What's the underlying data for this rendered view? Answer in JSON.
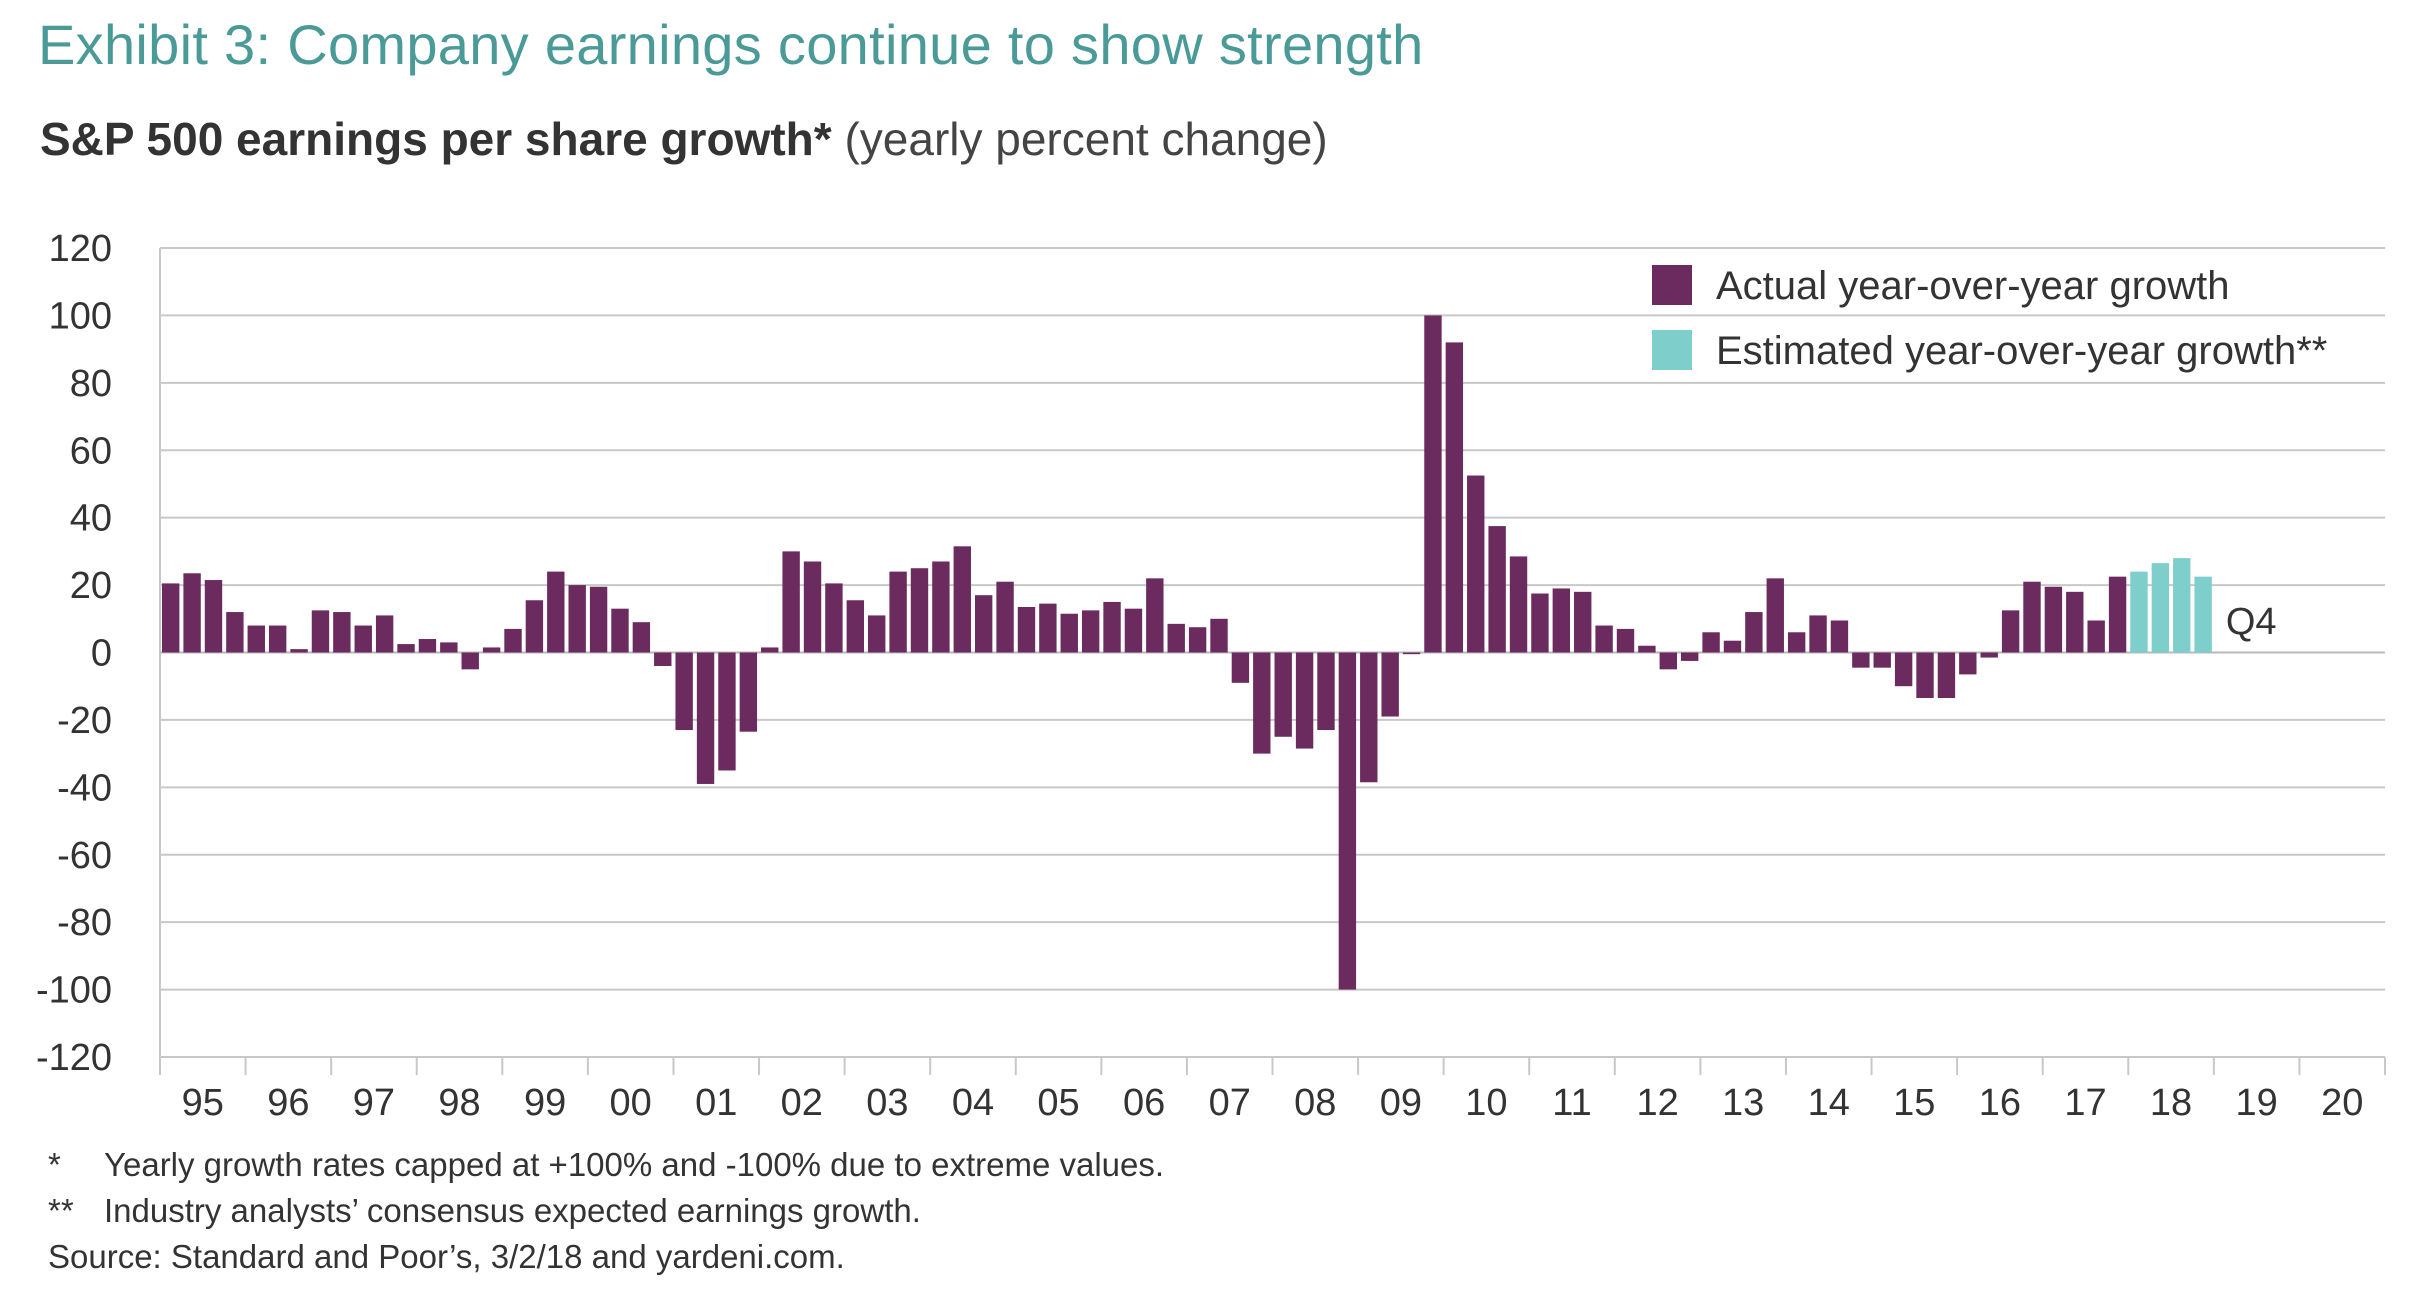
{
  "title": "Exhibit 3: Company earnings continue to show strength",
  "subtitle": {
    "main": "S&P 500 earnings per share growth*",
    "note": "(yearly percent change)"
  },
  "colors": {
    "actual": "#6c2b5f",
    "estimated": "#7ecfcb",
    "grid": "#c8c8c8",
    "title": "#4a9a98"
  },
  "chart_data": {
    "type": "bar",
    "title": "S&P 500 earnings per share growth* (yearly percent change)",
    "xlabel": "",
    "ylabel": "",
    "ylim": [
      -120,
      120
    ],
    "yticks": [
      120,
      100,
      80,
      60,
      40,
      20,
      0,
      -20,
      -40,
      -60,
      -80,
      -100,
      -120
    ],
    "xticks": [
      "95",
      "96",
      "97",
      "98",
      "99",
      "00",
      "01",
      "02",
      "03",
      "04",
      "05",
      "06",
      "07",
      "08",
      "09",
      "10",
      "11",
      "12",
      "13",
      "14",
      "15",
      "16",
      "17",
      "18",
      "19",
      "20"
    ],
    "frequency": "quarterly",
    "start_year": "95",
    "legend": {
      "position": "top-right",
      "entries": [
        "Actual year-over-year growth",
        "Estimated year-over-year growth**"
      ]
    },
    "annotation": "Q4",
    "series": [
      {
        "name": "Actual year-over-year growth",
        "values": [
          20.5,
          23.5,
          21.5,
          12,
          8,
          8,
          1,
          12.5,
          12,
          8,
          11,
          2.5,
          4,
          3,
          -5,
          1.5,
          7,
          15.5,
          24,
          20,
          19.5,
          13,
          9,
          -4,
          -23,
          -39,
          -35,
          -23.5,
          1.5,
          30,
          27,
          20.5,
          15.5,
          11,
          24,
          25,
          27,
          31.5,
          17,
          21,
          13.5,
          14.5,
          11.5,
          12.5,
          15,
          13,
          22,
          8.5,
          7.5,
          10,
          -9,
          -30,
          -25,
          -28.5,
          -23,
          -100,
          -38.5,
          -19,
          -0.5,
          100,
          92,
          52.5,
          37.5,
          28.5,
          17.5,
          19,
          18,
          8,
          7,
          2,
          -5,
          -2.5,
          6,
          3.5,
          12,
          22,
          6,
          11,
          9.5,
          -4.5,
          -4.5,
          -10,
          -13.5,
          -13.5,
          -6.5,
          -1.5,
          12.5,
          21,
          19.5,
          18,
          9.5,
          22.5
        ]
      },
      {
        "name": "Estimated year-over-year growth**",
        "values": [
          24,
          26.5,
          28,
          22.5
        ]
      }
    ]
  },
  "footnotes": [
    {
      "mark": "*",
      "text": "Yearly growth rates capped at +100% and -100% due to extreme values."
    },
    {
      "mark": "**",
      "text": "Industry analysts’ consensus expected earnings growth."
    },
    {
      "mark": "",
      "text": "Source: Standard and Poor’s, 3/2/18 and yardeni.com."
    }
  ]
}
